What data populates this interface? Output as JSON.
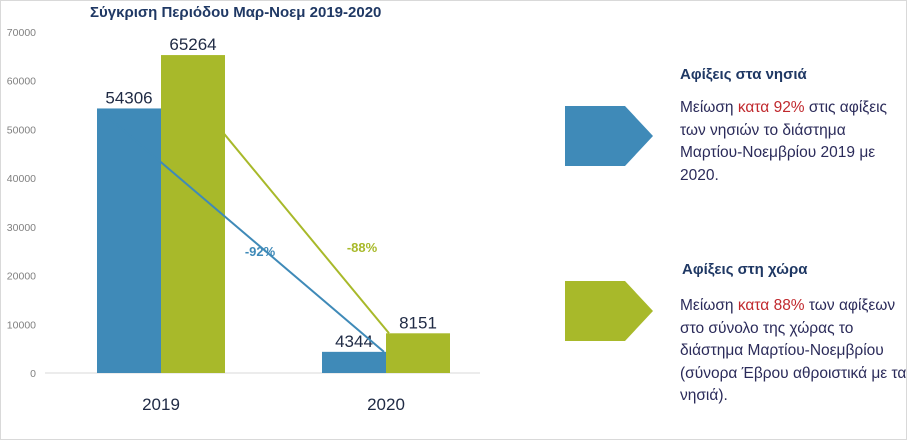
{
  "chart_data": {
    "type": "bar",
    "title": "Σύγκριση Περιόδου Μαρ-Νοεμ 2019-2020",
    "categories": [
      "2019",
      "2020"
    ],
    "series": [
      {
        "name": "Αφίξεις στα νησιά",
        "values": [
          54306,
          4344
        ],
        "color": "#3f8ab8"
      },
      {
        "name": "Αφίξεις στη χώρα",
        "values": [
          65264,
          8151
        ],
        "color": "#a8b92a"
      }
    ],
    "ylim": [
      0,
      70000
    ],
    "yticks": [
      0,
      10000,
      20000,
      30000,
      40000,
      50000,
      60000,
      70000
    ],
    "ytick_labels": [
      "0",
      "10000",
      "20000",
      "30000",
      "40000",
      "50000",
      "60000",
      "70000"
    ],
    "annotations": [
      {
        "text": "-92%",
        "series": 0,
        "color": "#3f8ab8"
      },
      {
        "text": "-88%",
        "series": 1,
        "color": "#a8b92a"
      }
    ],
    "xlabel": "",
    "ylabel": "",
    "grid": false
  },
  "panels": [
    {
      "title": "Αφίξεις στα νησιά",
      "text_before": "Μείωση ",
      "highlight": "κατα 92%",
      "text_after": " στις αφίξεις των νησιών το διάστημα Μαρτίου-Νοεμβρίου 2019 με 2020.",
      "color": "#3f8ab8"
    },
    {
      "title": "Αφίξεις στη χώρα",
      "text_before": "Μείωση ",
      "highlight": "κατα 88%",
      "text_after": " των αφίξεων στο σύνολο της χώρας το διάστημα Μαρτίου-Νοεμβρίου (σύνορα Έβρου αθροιστικά με τα νησιά).",
      "color": "#a8b92a"
    }
  ]
}
